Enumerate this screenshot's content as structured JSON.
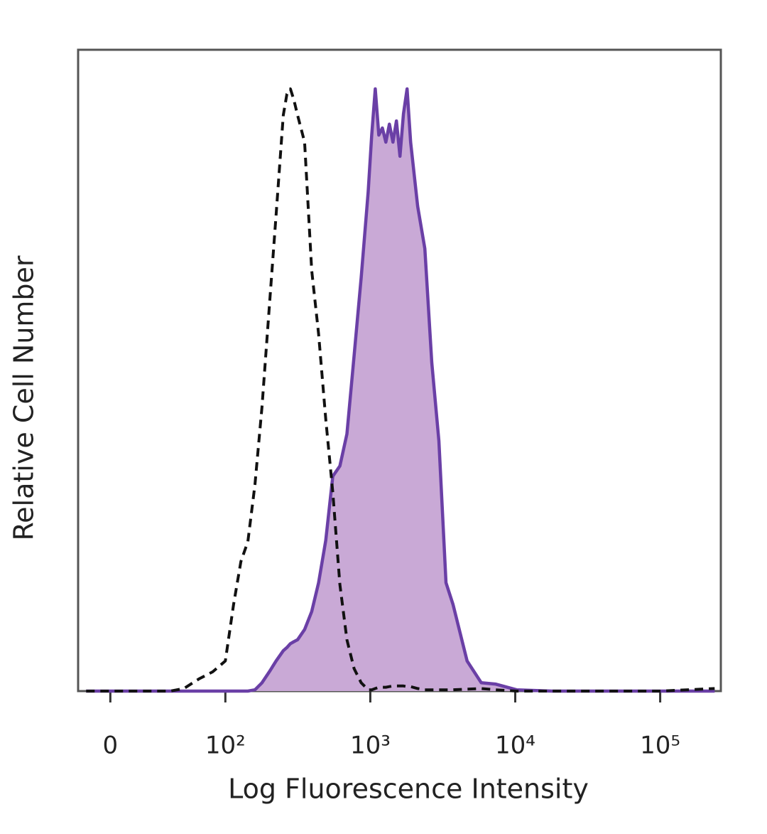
{
  "chart_data": {
    "type": "area",
    "xlabel": "Log Fluorescence Intensity",
    "ylabel": "Relative Cell Number",
    "xscale": "biexponential",
    "xlim": [
      -28,
      262144
    ],
    "xticks": [
      0,
      {
        "value": 100,
        "label": "10²"
      },
      {
        "value": 1000,
        "label": "10³"
      },
      {
        "value": 10000,
        "label": "10⁴"
      },
      {
        "value": 100000,
        "label": "10⁵"
      }
    ],
    "ylim": [
      0,
      100
    ],
    "x": [
      -21,
      0,
      28,
      52,
      64,
      77,
      89,
      100,
      114,
      128,
      143,
      160,
      179,
      201,
      224,
      251,
      266,
      281,
      297,
      315,
      352,
      394,
      440,
      493,
      551,
      617,
      690,
      773,
      865,
      967,
      1023,
      1082,
      1145,
      1211,
      1280,
      1355,
      1433,
      1515,
      1603,
      1694,
      1793,
      1897,
      2123,
      2377,
      2655,
      2972,
      3327,
      3724,
      4656,
      5834,
      7295,
      10233,
      17947,
      39355,
      100000,
      237684
    ],
    "series": [
      {
        "color": "#6a3fa6",
        "fill": "#c9a9d6",
        "dashed": false,
        "values": [
          0,
          0,
          0,
          0,
          0,
          0,
          0,
          0,
          0,
          0,
          0,
          0.2,
          1.3,
          3.0,
          4.7,
          6.3,
          6.8,
          7.4,
          7.7,
          8.0,
          9.6,
          12.4,
          16.9,
          23.5,
          33.5,
          35.1,
          40.1,
          52.3,
          64.5,
          77.8,
          86.7,
          93.9,
          86.7,
          87.8,
          85.6,
          88.4,
          85.6,
          88.9,
          83.4,
          90.0,
          93.9,
          85.6,
          75.6,
          69.0,
          51.2,
          39.0,
          16.9,
          13.5,
          4.7,
          1.3,
          1.1,
          0.2,
          0,
          0,
          0,
          0
        ]
      },
      {
        "color": "#111111",
        "fill": "none",
        "dashed": true,
        "values": [
          0,
          0,
          0,
          0,
          0.4,
          1.9,
          3.0,
          4.7,
          13.5,
          20.2,
          23.3,
          32.2,
          44.3,
          59.9,
          74.3,
          89.8,
          93.1,
          93.9,
          92.2,
          89.8,
          85.6,
          65.6,
          55.7,
          42.4,
          31.0,
          16.6,
          8.0,
          3.5,
          1.3,
          0.2,
          0.2,
          0.4,
          0.6,
          0.6,
          0.6,
          0.7,
          0.8,
          0.8,
          0.8,
          0.8,
          0.7,
          0.7,
          0.4,
          0.2,
          0.2,
          0.2,
          0.2,
          0.2,
          0.3,
          0.4,
          0.2,
          0,
          0,
          0,
          0,
          0.4
        ]
      }
    ]
  }
}
